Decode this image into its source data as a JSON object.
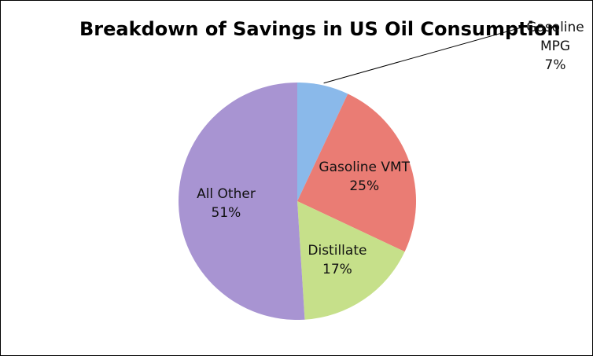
{
  "chart_data": {
    "type": "pie",
    "title": "Breakdown of Savings in US Oil Consumption",
    "categories": [
      "Gasoline MPG",
      "Gasoline VMT",
      "Distillate",
      "All Other"
    ],
    "values": [
      7,
      25,
      17,
      51
    ],
    "value_labels": [
      "7%",
      "25%",
      "17%",
      "51%"
    ],
    "colors": [
      "#8ab9ea",
      "#ea7c74",
      "#c6e08a",
      "#a894d2"
    ]
  }
}
